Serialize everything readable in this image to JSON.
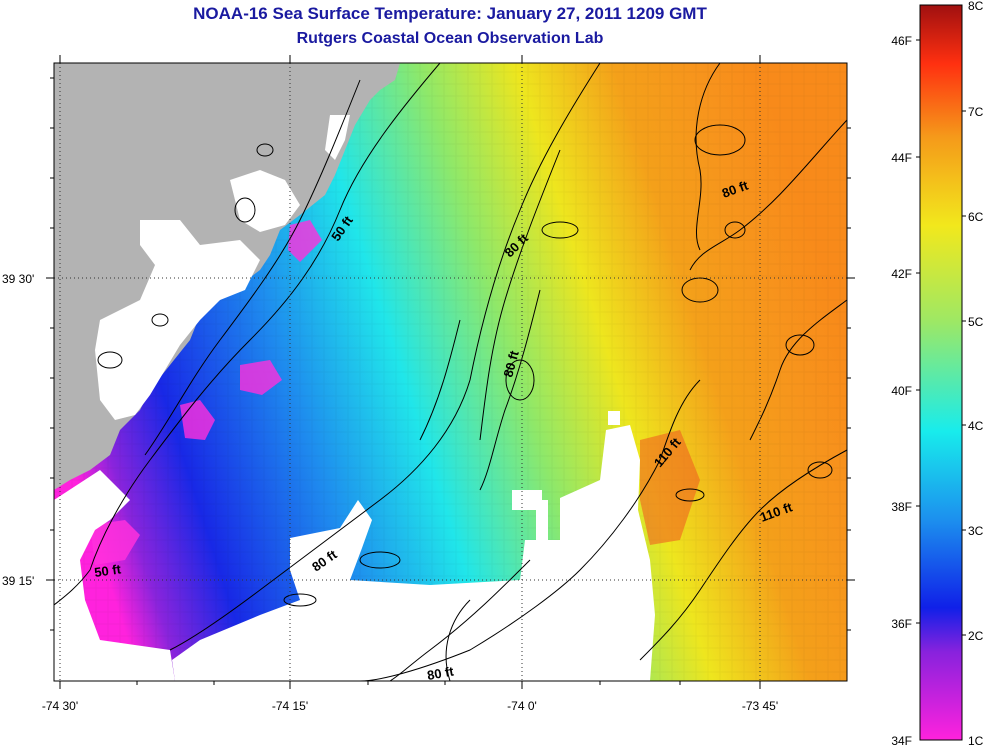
{
  "title": {
    "line1": "NOAA-16 Sea Surface Temperature:  January 27, 2011 1209 GMT",
    "line2": "Rutgers Coastal Ocean Observation Lab"
  },
  "axes": {
    "x_ticks": [
      "-74 30'",
      "-74 15'",
      "-74 0'",
      "-73 45'"
    ],
    "y_ticks": [
      "39 30'",
      "39 15'"
    ]
  },
  "contours": [
    "50 ft",
    "50 ft",
    "80 ft",
    "80 ft",
    "80 ft",
    "80 ft",
    "80 ft",
    "110 ft",
    "110 ft"
  ],
  "colorbar": {
    "f_labels": [
      "46F",
      "44F",
      "42F",
      "40F",
      "38F",
      "36F",
      "34F"
    ],
    "c_labels": [
      "8C",
      "7C",
      "6C",
      "5C",
      "4C",
      "3C",
      "2C",
      "1C"
    ],
    "range_c": [
      1,
      8
    ],
    "colors": [
      "#ff22dd",
      "#8822dd",
      "#1020e8",
      "#1c90ee",
      "#18ecec",
      "#9ee864",
      "#f2e81c",
      "#f59a1a",
      "#ff3010",
      "#a01010"
    ]
  },
  "colors": {
    "land": "#b3b3b3",
    "no_data": "#ffffff",
    "title": "#1a1aa0"
  }
}
